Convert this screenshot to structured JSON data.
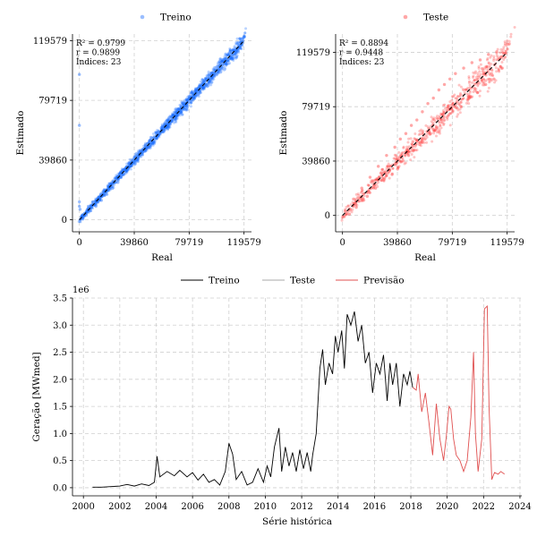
{
  "chart_data": [
    {
      "type": "scatter",
      "legend": "Treino",
      "xlabel": "Real",
      "ylabel": "Estimado",
      "ticks": [
        0,
        39860,
        79719,
        119579
      ],
      "xlim": [
        -5000,
        125000
      ],
      "ylim": [
        -8000,
        124000
      ],
      "annotation": [
        "R² = 0.9799",
        "r = 0.9899",
        "Índices: 23"
      ],
      "color": "#1f6fff",
      "grid": true,
      "legend_position": "top-center",
      "points": [
        [
          500,
          7000
        ],
        [
          1500,
          2000
        ],
        [
          2500,
          500
        ],
        [
          3500,
          4000
        ],
        [
          5000,
          3000
        ],
        [
          6500,
          9000
        ],
        [
          8000,
          6000
        ],
        [
          10000,
          12000
        ],
        [
          12000,
          9000
        ],
        [
          14000,
          15000
        ],
        [
          16000,
          13000
        ],
        [
          18000,
          20000
        ],
        [
          20000,
          17000
        ],
        [
          22000,
          24000
        ],
        [
          24000,
          21000
        ],
        [
          26000,
          28000
        ],
        [
          28000,
          25000
        ],
        [
          30000,
          32000
        ],
        [
          32000,
          30000
        ],
        [
          34000,
          35000
        ],
        [
          36000,
          38000
        ],
        [
          38000,
          36000
        ],
        [
          40000,
          42000
        ],
        [
          42000,
          40000
        ],
        [
          44000,
          46000
        ],
        [
          46000,
          45000
        ],
        [
          48000,
          50000
        ],
        [
          50000,
          48000
        ],
        [
          52000,
          55000
        ],
        [
          54000,
          52000
        ],
        [
          56000,
          58000
        ],
        [
          58000,
          57000
        ],
        [
          60000,
          62000
        ],
        [
          62000,
          60000
        ],
        [
          64000,
          66000
        ],
        [
          66000,
          64000
        ],
        [
          68000,
          70000
        ],
        [
          70000,
          68000
        ],
        [
          72000,
          74000
        ],
        [
          74000,
          72000
        ],
        [
          76000,
          78000
        ],
        [
          78000,
          76000
        ],
        [
          80000,
          82000
        ],
        [
          82000,
          80000
        ],
        [
          84000,
          86000
        ],
        [
          86000,
          84000
        ],
        [
          88000,
          90000
        ],
        [
          90000,
          88000
        ],
        [
          92000,
          94000
        ],
        [
          94000,
          92000
        ],
        [
          96000,
          98000
        ],
        [
          98000,
          96000
        ],
        [
          100000,
          102000
        ],
        [
          102000,
          100000
        ],
        [
          104000,
          106000
        ],
        [
          106000,
          104000
        ],
        [
          108000,
          110000
        ],
        [
          110000,
          108000
        ],
        [
          112000,
          113000
        ],
        [
          114000,
          112000
        ],
        [
          116000,
          115000
        ],
        [
          118000,
          117000
        ],
        [
          0,
          63000
        ],
        [
          0,
          97000
        ],
        [
          0,
          9000
        ],
        [
          0,
          12000
        ]
      ]
    },
    {
      "type": "scatter",
      "legend": "Teste",
      "xlabel": "Real",
      "ylabel": "Estimado",
      "ticks": [
        0,
        39860,
        79719,
        119579
      ],
      "xlim": [
        -5000,
        125000
      ],
      "ylim": [
        -12000,
        133000
      ],
      "annotation": [
        "R² = 0.8894",
        "r = 0.9448",
        "Índices: 23"
      ],
      "color": "#ff3b3b",
      "grid": true,
      "legend_position": "top-center",
      "points": [
        [
          2000,
          4000
        ],
        [
          5000,
          1000
        ],
        [
          8000,
          12000
        ],
        [
          10000,
          6000
        ],
        [
          14000,
          20000
        ],
        [
          18000,
          14000
        ],
        [
          20000,
          28000
        ],
        [
          24000,
          20000
        ],
        [
          26000,
          36000
        ],
        [
          30000,
          26000
        ],
        [
          32000,
          44000
        ],
        [
          36000,
          30000
        ],
        [
          38000,
          50000
        ],
        [
          40000,
          34000
        ],
        [
          42000,
          56000
        ],
        [
          44000,
          40000
        ],
        [
          46000,
          60000
        ],
        [
          48000,
          44000
        ],
        [
          50000,
          66000
        ],
        [
          52000,
          48000
        ],
        [
          54000,
          70000
        ],
        [
          56000,
          52000
        ],
        [
          58000,
          76000
        ],
        [
          60000,
          56000
        ],
        [
          62000,
          82000
        ],
        [
          64000,
          60000
        ],
        [
          66000,
          86000
        ],
        [
          68000,
          64000
        ],
        [
          70000,
          92000
        ],
        [
          72000,
          70000
        ],
        [
          74000,
          96000
        ],
        [
          76000,
          72000
        ],
        [
          78000,
          100000
        ],
        [
          80000,
          76000
        ],
        [
          82000,
          104000
        ],
        [
          86000,
          80000
        ],
        [
          88000,
          108000
        ],
        [
          92000,
          86000
        ],
        [
          94000,
          112000
        ],
        [
          98000,
          90000
        ],
        [
          100000,
          114000
        ],
        [
          104000,
          96000
        ],
        [
          106000,
          118000
        ],
        [
          110000,
          100000
        ],
        [
          112000,
          120000
        ],
        [
          116000,
          108000
        ],
        [
          118000,
          116000
        ]
      ]
    },
    {
      "type": "line",
      "xlabel": "Série histórica",
      "ylabel": "Geração [MWmed]",
      "scale_label": "1e6",
      "xlim": [
        1999.4,
        2024.1
      ],
      "ylim": [
        -0.15,
        3.5
      ],
      "xticks": [
        2000,
        2002,
        2004,
        2006,
        2008,
        2010,
        2012,
        2014,
        2016,
        2018,
        2020,
        2022,
        2024
      ],
      "yticks": [
        "0.0",
        "0.5",
        "1.0",
        "1.5",
        "2.0",
        "2.5",
        "3.0",
        "3.5"
      ],
      "grid": true,
      "legend_position": "top-center",
      "series": [
        {
          "name": "Treino",
          "color": "#000000",
          "points": [
            [
              2000.5,
              0.01
            ],
            [
              2001.0,
              0.01
            ],
            [
              2001.5,
              0.02
            ],
            [
              2002.0,
              0.03
            ],
            [
              2002.4,
              0.06
            ],
            [
              2002.8,
              0.03
            ],
            [
              2003.2,
              0.07
            ],
            [
              2003.6,
              0.04
            ],
            [
              2003.9,
              0.1
            ],
            [
              2004.05,
              0.58
            ],
            [
              2004.2,
              0.2
            ],
            [
              2004.6,
              0.3
            ],
            [
              2005.0,
              0.22
            ],
            [
              2005.3,
              0.32
            ],
            [
              2005.7,
              0.2
            ],
            [
              2006.0,
              0.28
            ],
            [
              2006.3,
              0.14
            ],
            [
              2006.6,
              0.25
            ],
            [
              2006.9,
              0.1
            ],
            [
              2007.2,
              0.15
            ],
            [
              2007.5,
              0.05
            ],
            [
              2007.8,
              0.3
            ],
            [
              2008.0,
              0.82
            ],
            [
              2008.2,
              0.62
            ],
            [
              2008.4,
              0.15
            ],
            [
              2008.7,
              0.3
            ],
            [
              2009.0,
              0.05
            ],
            [
              2009.3,
              0.1
            ],
            [
              2009.6,
              0.35
            ],
            [
              2009.9,
              0.1
            ],
            [
              2010.1,
              0.4
            ],
            [
              2010.3,
              0.2
            ],
            [
              2010.5,
              0.75
            ],
            [
              2010.75,
              1.1
            ],
            [
              2010.9,
              0.3
            ],
            [
              2011.1,
              0.75
            ],
            [
              2011.3,
              0.4
            ],
            [
              2011.5,
              0.65
            ],
            [
              2011.7,
              0.3
            ],
            [
              2011.9,
              0.7
            ],
            [
              2012.1,
              0.35
            ],
            [
              2012.3,
              0.65
            ],
            [
              2012.5,
              0.3
            ],
            [
              2012.6,
              0.6
            ],
            [
              2012.8,
              1.0
            ],
            [
              2013.0,
              2.2
            ],
            [
              2013.15,
              2.55
            ],
            [
              2013.3,
              1.9
            ],
            [
              2013.5,
              2.3
            ],
            [
              2013.7,
              2.1
            ],
            [
              2013.85,
              2.8
            ],
            [
              2014.0,
              2.5
            ],
            [
              2014.2,
              2.9
            ],
            [
              2014.35,
              2.2
            ],
            [
              2014.5,
              3.2
            ],
            [
              2014.7,
              3.0
            ],
            [
              2014.9,
              3.25
            ],
            [
              2015.1,
              2.7
            ],
            [
              2015.3,
              3.0
            ],
            [
              2015.5,
              2.3
            ],
            [
              2015.7,
              2.5
            ],
            [
              2015.9,
              1.75
            ],
            [
              2016.1,
              2.3
            ],
            [
              2016.3,
              2.1
            ],
            [
              2016.5,
              2.45
            ],
            [
              2016.7,
              1.6
            ],
            [
              2016.85,
              2.3
            ],
            [
              2017.0,
              1.9
            ],
            [
              2017.2,
              2.3
            ],
            [
              2017.4,
              1.5
            ],
            [
              2017.6,
              2.1
            ],
            [
              2017.8,
              1.9
            ],
            [
              2017.95,
              2.15
            ],
            [
              2018.1,
              1.85
            ]
          ]
        },
        {
          "name": "Teste",
          "color": "#aaaaaa",
          "points": []
        },
        {
          "name": "Previsão",
          "color": "#e05050",
          "points": [
            [
              2018.1,
              1.85
            ],
            [
              2018.3,
              1.8
            ],
            [
              2018.4,
              2.1
            ],
            [
              2018.6,
              1.4
            ],
            [
              2018.8,
              1.75
            ],
            [
              2019.0,
              1.2
            ],
            [
              2019.2,
              0.6
            ],
            [
              2019.4,
              1.55
            ],
            [
              2019.6,
              0.9
            ],
            [
              2019.8,
              0.5
            ],
            [
              2019.95,
              0.95
            ],
            [
              2020.1,
              1.5
            ],
            [
              2020.2,
              1.45
            ],
            [
              2020.35,
              0.9
            ],
            [
              2020.5,
              0.6
            ],
            [
              2020.7,
              0.5
            ],
            [
              2020.9,
              0.3
            ],
            [
              2021.1,
              0.5
            ],
            [
              2021.3,
              1.3
            ],
            [
              2021.45,
              2.5
            ],
            [
              2021.55,
              1.0
            ],
            [
              2021.7,
              0.3
            ],
            [
              2021.9,
              0.9
            ],
            [
              2022.05,
              3.3
            ],
            [
              2022.2,
              3.35
            ],
            [
              2022.3,
              1.5
            ],
            [
              2022.45,
              0.15
            ],
            [
              2022.6,
              0.28
            ],
            [
              2022.8,
              0.25
            ],
            [
              2022.95,
              0.3
            ],
            [
              2023.15,
              0.25
            ]
          ]
        }
      ]
    }
  ]
}
